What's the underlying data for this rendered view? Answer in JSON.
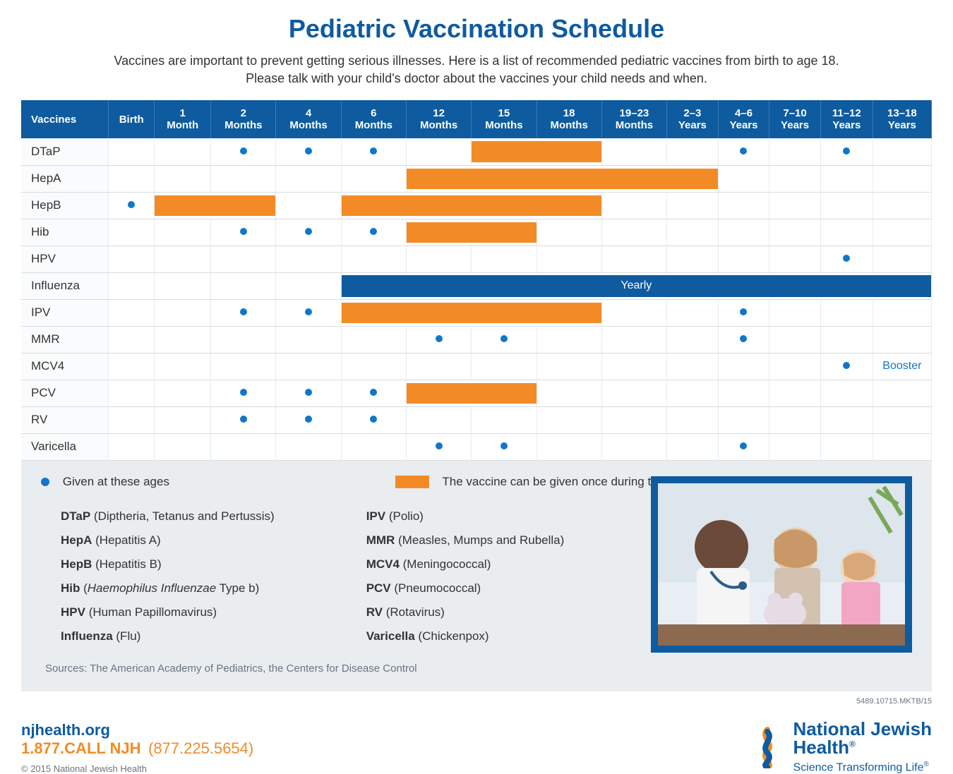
{
  "title": "Pediatric Vaccination Schedule",
  "subtitle_line1": "Vaccines are important to prevent getting serious illnesses. Here is a list of recommended pediatric vaccines from birth to age 18.",
  "subtitle_line2": "Please talk with your child's doctor about the vaccines your child needs and when.",
  "columns": [
    "Vaccines",
    "Birth",
    "1\nMonth",
    "2\nMonths",
    "4\nMonths",
    "6\nMonths",
    "12\nMonths",
    "15\nMonths",
    "18\nMonths",
    "19–23\nMonths",
    "2–3\nYears",
    "4–6\nYears",
    "7–10\nYears",
    "11–12\nYears",
    "13–18\nYears"
  ],
  "rows": [
    {
      "name": "DTaP",
      "cells": [
        null,
        null,
        "dot",
        "dot",
        "dot",
        null,
        {
          "range": [
            7,
            8
          ]
        },
        null,
        null,
        null,
        "dot",
        null,
        "dot",
        null
      ]
    },
    {
      "name": "HepA",
      "cells": [
        null,
        null,
        null,
        null,
        null,
        {
          "range": [
            6,
            10
          ]
        },
        null,
        null,
        null,
        null,
        null,
        null,
        null,
        null
      ]
    },
    {
      "name": "HepB",
      "cells": [
        "dot",
        {
          "range": [
            2,
            3
          ]
        },
        null,
        null,
        {
          "range": [
            5,
            8
          ]
        },
        null,
        null,
        null,
        null,
        null,
        null,
        null,
        null,
        null
      ]
    },
    {
      "name": "Hib",
      "cells": [
        null,
        null,
        "dot",
        "dot",
        "dot",
        {
          "range": [
            6,
            7
          ]
        },
        null,
        null,
        null,
        null,
        null,
        null,
        null,
        null
      ]
    },
    {
      "name": "HPV",
      "cells": [
        null,
        null,
        null,
        null,
        null,
        null,
        null,
        null,
        null,
        null,
        null,
        null,
        "dot",
        null
      ]
    },
    {
      "name": "Influenza",
      "cells": [
        null,
        null,
        null,
        null,
        {
          "flu": [
            5,
            14
          ],
          "label": "Yearly"
        },
        null,
        null,
        null,
        null,
        null,
        null,
        null,
        null,
        null
      ]
    },
    {
      "name": "IPV",
      "cells": [
        null,
        null,
        "dot",
        "dot",
        {
          "range": [
            5,
            8
          ]
        },
        null,
        null,
        null,
        null,
        null,
        "dot",
        null,
        null,
        null
      ]
    },
    {
      "name": "MMR",
      "cells": [
        null,
        null,
        null,
        null,
        null,
        "dot",
        "dot",
        null,
        null,
        null,
        "dot",
        null,
        null,
        null
      ]
    },
    {
      "name": "MCV4",
      "cells": [
        null,
        null,
        null,
        null,
        null,
        null,
        null,
        null,
        null,
        null,
        null,
        null,
        "dot",
        {
          "text": "Booster"
        }
      ]
    },
    {
      "name": "PCV",
      "cells": [
        null,
        null,
        "dot",
        "dot",
        "dot",
        {
          "range": [
            6,
            7
          ]
        },
        null,
        null,
        null,
        null,
        null,
        null,
        null,
        null
      ]
    },
    {
      "name": "RV",
      "cells": [
        null,
        null,
        "dot",
        "dot",
        "dot",
        null,
        null,
        null,
        null,
        null,
        null,
        null,
        null,
        null
      ]
    },
    {
      "name": "Varicella",
      "cells": [
        null,
        null,
        null,
        null,
        null,
        "dot",
        "dot",
        null,
        null,
        null,
        "dot",
        null,
        null,
        null
      ]
    }
  ],
  "legend": {
    "dot_label": "Given at these ages",
    "range_label": "The vaccine can be given once during the age range"
  },
  "definitions_col1": [
    {
      "abbr": "DTaP",
      "full": "(Diptheria, Tetanus and Pertussis)"
    },
    {
      "abbr": "HepA",
      "full": "(Hepatitis A)"
    },
    {
      "abbr": "HepB",
      "full": "(Hepatitis B)"
    },
    {
      "abbr": "Hib",
      "full": "(<i>Haemophilus Influenzae</i> Type b)"
    },
    {
      "abbr": "HPV",
      "full": "(Human Papillomavirus)"
    },
    {
      "abbr": "Influenza",
      "full": "(Flu)"
    }
  ],
  "definitions_col2": [
    {
      "abbr": "IPV",
      "full": "(Polio)"
    },
    {
      "abbr": "MMR",
      "full": "(Measles, Mumps and Rubella)"
    },
    {
      "abbr": "MCV4",
      "full": "(Meningococcal)"
    },
    {
      "abbr": "PCV",
      "full": "(Pneumococcal)"
    },
    {
      "abbr": "RV",
      "full": "(Rotavirus)"
    },
    {
      "abbr": "Varicella",
      "full": "(Chickenpox)"
    }
  ],
  "sources": "Sources: The American Academy of Pediatrics, the Centers for Disease Control",
  "docnum": "5489.10715.MKTB/15",
  "footer": {
    "url": "njhealth.org",
    "phone1": "1.877.CALL NJH",
    "phone2": "(877.225.5654)",
    "copyright": "© 2015 National Jewish Health",
    "brand_line1": "National Jewish",
    "brand_line1b": "Health",
    "brand_reg": "®",
    "tagline": "Science Transforming Life",
    "tagline_reg": "®"
  },
  "colors": {
    "primary_blue": "#0e5b9f",
    "dot_blue": "#1176c9",
    "orange": "#f28b26",
    "legend_bg": "#e9edf0",
    "border": "#d7dde2"
  }
}
